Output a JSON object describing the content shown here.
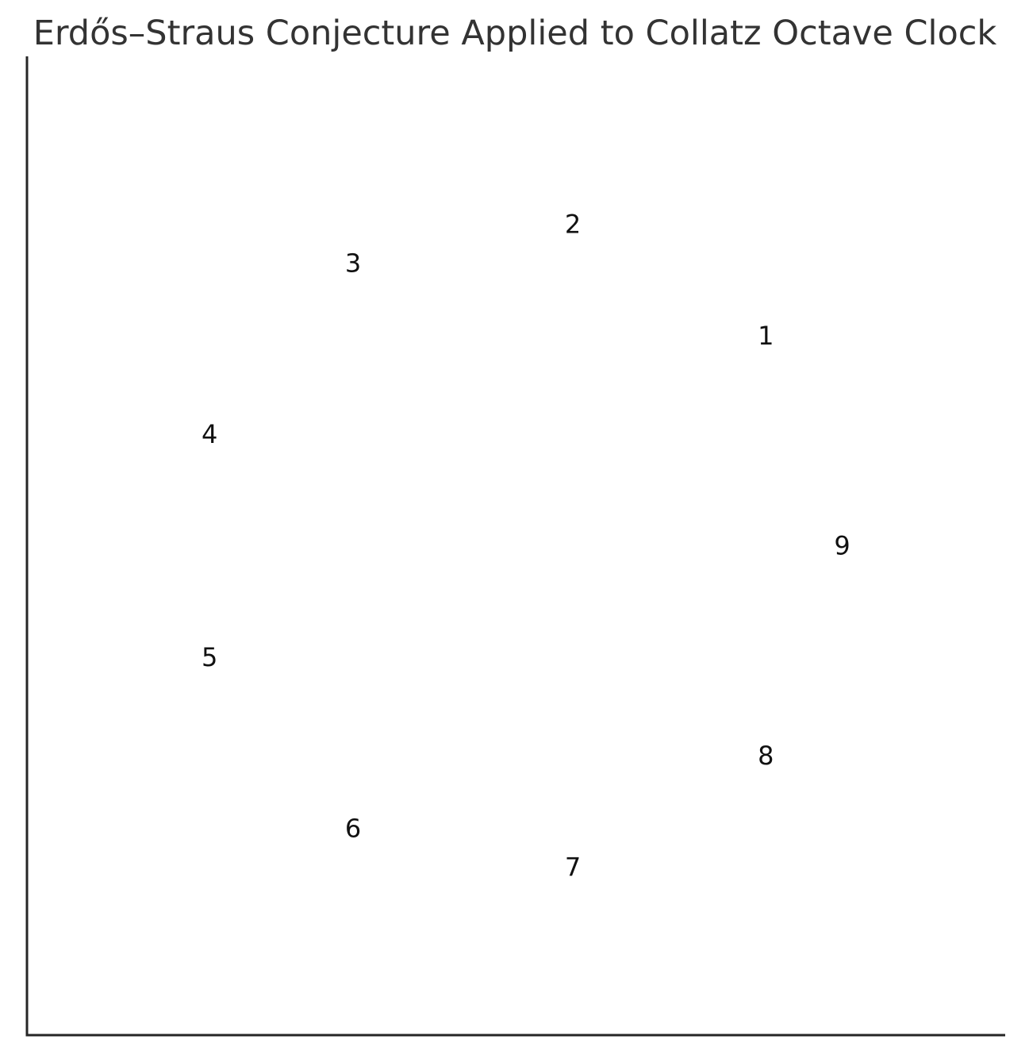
{
  "chart_data": {
    "type": "scatter",
    "title": "Erdős–Straus Conjecture Applied to Collatz Octave Clock",
    "xlabel": "",
    "ylabel": "",
    "grid": false,
    "legend": "none",
    "xlim": [
      -1.5,
      1.5
    ],
    "ylim": [
      -1.5,
      1.5
    ],
    "points": [
      {
        "label": "1",
        "x": 0.766,
        "y": 0.643
      },
      {
        "label": "2",
        "x": 0.174,
        "y": 0.985
      },
      {
        "label": "3",
        "x": -0.5,
        "y": 0.866
      },
      {
        "label": "4",
        "x": -0.94,
        "y": 0.342
      },
      {
        "label": "5",
        "x": -0.94,
        "y": -0.342
      },
      {
        "label": "6",
        "x": -0.5,
        "y": -0.866
      },
      {
        "label": "7",
        "x": 0.174,
        "y": -0.985
      },
      {
        "label": "8",
        "x": 0.766,
        "y": -0.643
      },
      {
        "label": "9",
        "x": 1.0,
        "y": 0.0
      }
    ],
    "colors": {
      "title": "#333333",
      "labels": "#111111",
      "axes": "#262626"
    }
  }
}
